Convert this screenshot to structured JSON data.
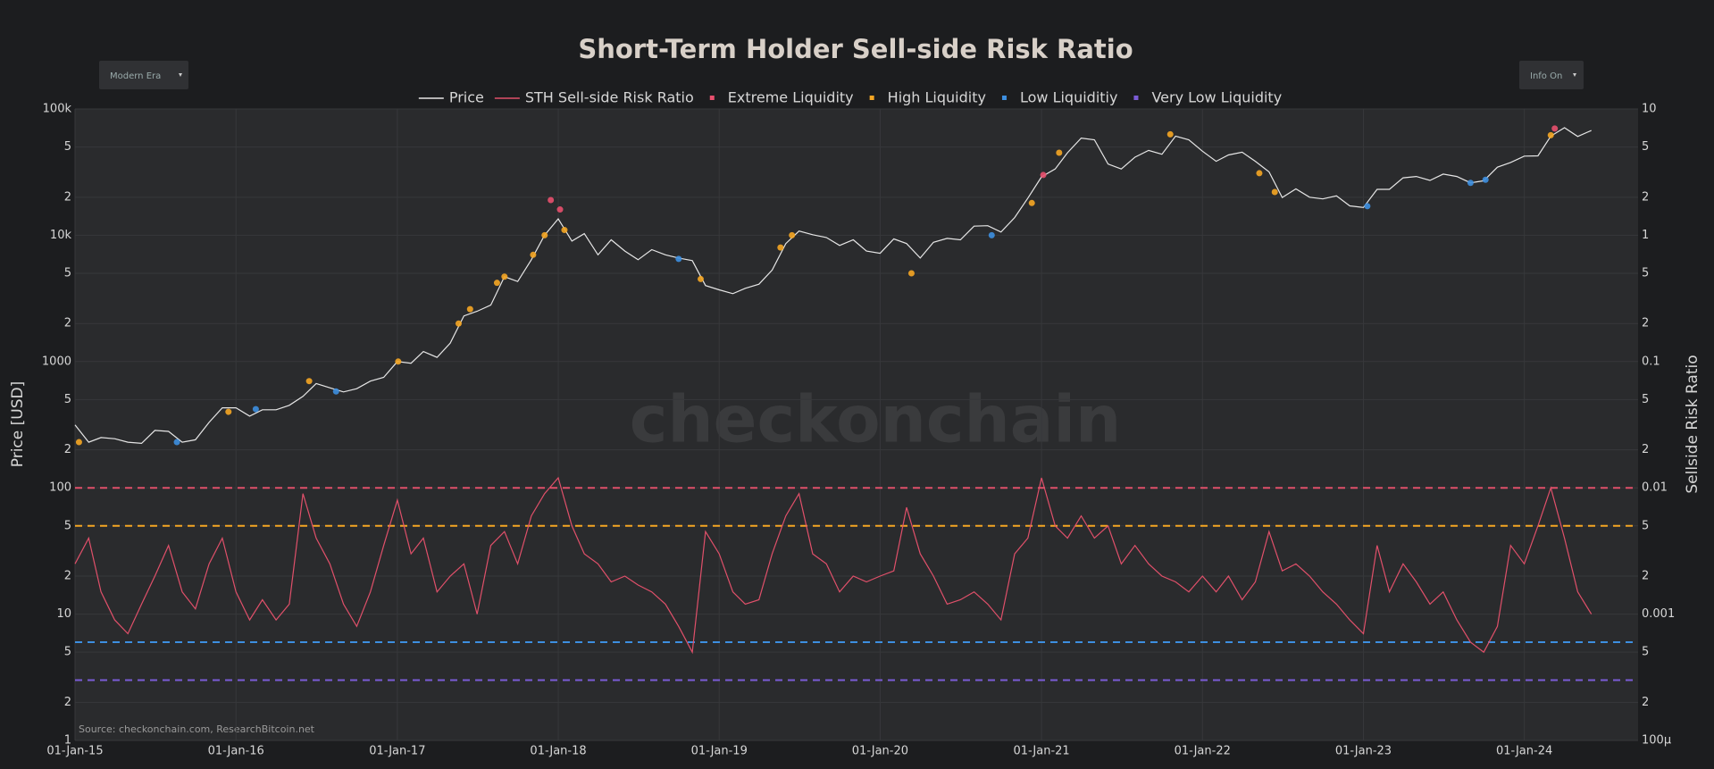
{
  "controls": {
    "era": "Modern Era",
    "info": "Info On"
  },
  "chart_data": {
    "type": "line",
    "title": "Short-Term Holder Sell-side Risk Ratio",
    "source": "Source: checkonchain.com, ResearchBitcoin.net",
    "watermark": "checkonchain",
    "y_label": "Price [USD]",
    "y2_label": "Sellside Risk Ratio",
    "log_y": true,
    "log_y2": true,
    "grid": true,
    "legend": "top",
    "xlim": [
      "2015-01-01",
      "2024-09-15"
    ],
    "xticks": [
      {
        "value": "2015-01-01",
        "label": "01-Jan-15"
      },
      {
        "value": "2016-01-01",
        "label": "01-Jan-16"
      },
      {
        "value": "2017-01-01",
        "label": "01-Jan-17"
      },
      {
        "value": "2018-01-01",
        "label": "01-Jan-18"
      },
      {
        "value": "2019-01-01",
        "label": "01-Jan-19"
      },
      {
        "value": "2020-01-01",
        "label": "01-Jan-20"
      },
      {
        "value": "2021-01-01",
        "label": "01-Jan-21"
      },
      {
        "value": "2022-01-01",
        "label": "01-Jan-22"
      },
      {
        "value": "2023-01-01",
        "label": "01-Jan-23"
      },
      {
        "value": "2024-01-01",
        "label": "01-Jan-24"
      }
    ],
    "ylim": [
      1,
      100000
    ],
    "yticks": [
      1,
      2,
      5,
      10,
      {
        "value": 20,
        "label": "2"
      },
      {
        "value": 50,
        "label": "5"
      },
      100,
      {
        "value": 200,
        "label": "2"
      },
      {
        "value": 500,
        "label": "5"
      },
      1000,
      {
        "value": 2000,
        "label": "2"
      },
      {
        "value": 5000,
        "label": "5"
      },
      {
        "value": 10000,
        "label": "10k"
      },
      {
        "value": 20000,
        "label": "2"
      },
      {
        "value": 50000,
        "label": "5"
      },
      {
        "value": 100000,
        "label": "100k"
      }
    ],
    "y2lim": [
      0.0001,
      10
    ],
    "y2ticks": [
      {
        "value": 0.0001,
        "label": "100μ"
      },
      {
        "value": 0.0002,
        "label": "2"
      },
      {
        "value": 0.0005,
        "label": "5"
      },
      0.001,
      {
        "value": 0.002,
        "label": "2"
      },
      {
        "value": 0.005,
        "label": "5"
      },
      0.01,
      {
        "value": 0.02,
        "label": "2"
      },
      {
        "value": 0.05,
        "label": "5"
      },
      0.1,
      {
        "value": 0.2,
        "label": "2"
      },
      {
        "value": 0.5,
        "label": "5"
      },
      1,
      2,
      5,
      10
    ],
    "x": [
      "2015-01-01",
      "2015-02-01",
      "2015-03-01",
      "2015-04-01",
      "2015-05-01",
      "2015-06-01",
      "2015-07-01",
      "2015-08-01",
      "2015-09-01",
      "2015-10-01",
      "2015-11-01",
      "2015-12-01",
      "2016-01-01",
      "2016-02-01",
      "2016-03-01",
      "2016-04-01",
      "2016-05-01",
      "2016-06-01",
      "2016-07-01",
      "2016-08-01",
      "2016-09-01",
      "2016-10-01",
      "2016-11-01",
      "2016-12-01",
      "2017-01-01",
      "2017-02-01",
      "2017-03-01",
      "2017-04-01",
      "2017-05-01",
      "2017-06-01",
      "2017-07-01",
      "2017-08-01",
      "2017-09-01",
      "2017-10-01",
      "2017-11-01",
      "2017-12-01",
      "2018-01-01",
      "2018-02-01",
      "2018-03-01",
      "2018-04-01",
      "2018-05-01",
      "2018-06-01",
      "2018-07-01",
      "2018-08-01",
      "2018-09-01",
      "2018-10-01",
      "2018-11-01",
      "2018-12-01",
      "2019-01-01",
      "2019-02-01",
      "2019-03-01",
      "2019-04-01",
      "2019-05-01",
      "2019-06-01",
      "2019-07-01",
      "2019-08-01",
      "2019-09-01",
      "2019-10-01",
      "2019-11-01",
      "2019-12-01",
      "2020-01-01",
      "2020-02-01",
      "2020-03-01",
      "2020-04-01",
      "2020-05-01",
      "2020-06-01",
      "2020-07-01",
      "2020-08-01",
      "2020-09-01",
      "2020-10-01",
      "2020-11-01",
      "2020-12-01",
      "2021-01-01",
      "2021-02-01",
      "2021-03-01",
      "2021-04-01",
      "2021-05-01",
      "2021-06-01",
      "2021-07-01",
      "2021-08-01",
      "2021-09-01",
      "2021-10-01",
      "2021-11-01",
      "2021-12-01",
      "2022-01-01",
      "2022-02-01",
      "2022-03-01",
      "2022-04-01",
      "2022-05-01",
      "2022-06-01",
      "2022-07-01",
      "2022-08-01",
      "2022-09-01",
      "2022-10-01",
      "2022-11-01",
      "2022-12-01",
      "2023-01-01",
      "2023-02-01",
      "2023-03-01",
      "2023-04-01",
      "2023-05-01",
      "2023-06-01",
      "2023-07-01",
      "2023-08-01",
      "2023-09-01",
      "2023-10-01",
      "2023-11-01",
      "2023-12-01",
      "2024-01-01",
      "2024-02-01",
      "2024-03-01",
      "2024-04-01",
      "2024-05-01",
      "2024-06-01"
    ],
    "series": [
      {
        "name": "Price",
        "color": "#e6e6e6",
        "axis": "y",
        "values": [
          315,
          230,
          250,
          245,
          230,
          225,
          285,
          280,
          230,
          240,
          330,
          430,
          430,
          370,
          415,
          415,
          450,
          530,
          670,
          620,
          575,
          610,
          700,
          750,
          1000,
          970,
          1200,
          1080,
          1400,
          2300,
          2500,
          2800,
          4700,
          4300,
          6400,
          10000,
          13500,
          9000,
          10300,
          7000,
          9200,
          7500,
          6400,
          7700,
          7000,
          6600,
          6300,
          4000,
          3700,
          3450,
          3800,
          4100,
          5300,
          8600,
          10800,
          10100,
          9600,
          8300,
          9200,
          7500,
          7200,
          9350,
          8600,
          6600,
          8800,
          9450,
          9200,
          11800,
          11900,
          10600,
          13800,
          19700,
          29000,
          33500,
          45000,
          58800,
          57000,
          36600,
          33500,
          41500,
          47000,
          43800,
          61000,
          57000,
          46300,
          38500,
          43200,
          45500,
          38500,
          31800,
          19900,
          23300,
          20000,
          19400,
          20500,
          17100,
          16600,
          23100,
          23100,
          28500,
          29200,
          27200,
          30500,
          29200,
          26000,
          27000,
          34600,
          37700,
          42300,
          42500,
          61000,
          71000,
          60600,
          67500
        ]
      },
      {
        "name": "STH Sell-side Risk Ratio",
        "color": "#e0506a",
        "axis": "y2",
        "values": [
          0.0025,
          0.004,
          0.0015,
          0.0009,
          0.0007,
          0.0012,
          0.002,
          0.0035,
          0.0015,
          0.0011,
          0.0025,
          0.004,
          0.0015,
          0.0009,
          0.0013,
          0.0009,
          0.0012,
          0.009,
          0.004,
          0.0025,
          0.0012,
          0.0008,
          0.0015,
          0.0035,
          0.008,
          0.003,
          0.004,
          0.0015,
          0.002,
          0.0025,
          0.001,
          0.0035,
          0.0045,
          0.0025,
          0.006,
          0.009,
          0.012,
          0.005,
          0.003,
          0.0025,
          0.0018,
          0.002,
          0.0017,
          0.0015,
          0.0012,
          0.0008,
          0.0005,
          0.0045,
          0.003,
          0.0015,
          0.0012,
          0.0013,
          0.003,
          0.006,
          0.009,
          0.003,
          0.0025,
          0.0015,
          0.002,
          0.0018,
          0.002,
          0.0022,
          0.007,
          0.003,
          0.002,
          0.0012,
          0.0013,
          0.0015,
          0.0012,
          0.0009,
          0.003,
          0.004,
          0.012,
          0.005,
          0.004,
          0.006,
          0.004,
          0.005,
          0.0025,
          0.0035,
          0.0025,
          0.002,
          0.0018,
          0.0015,
          0.002,
          0.0015,
          0.002,
          0.0013,
          0.0018,
          0.0045,
          0.0022,
          0.0025,
          0.002,
          0.0015,
          0.0012,
          0.0009,
          0.0007,
          0.0035,
          0.0015,
          0.0025,
          0.0018,
          0.0012,
          0.0015,
          0.0009,
          0.0006,
          0.0005,
          0.0008,
          0.0035,
          0.0025,
          0.005,
          0.01,
          0.004,
          0.0015,
          0.001
        ]
      }
    ],
    "markers": [
      {
        "name": "Extreme Liquidity",
        "color": "#e8506e",
        "x": [
          "2017-12-15",
          "2018-01-05",
          "2021-01-05",
          "2024-03-10"
        ],
        "values": [
          19000,
          16000,
          30000,
          70000
        ]
      },
      {
        "name": "High Liquidity",
        "color": "#f5a623",
        "x": [
          "2015-01-10",
          "2015-12-15",
          "2016-06-15",
          "2017-01-03",
          "2017-05-20",
          "2017-06-15",
          "2017-08-15",
          "2017-09-01",
          "2017-11-05",
          "2017-12-01",
          "2018-01-15",
          "2018-11-20",
          "2019-05-20",
          "2019-06-15",
          "2020-03-12",
          "2020-12-10",
          "2021-02-10",
          "2021-10-20",
          "2022-05-10",
          "2022-06-14",
          "2024-03-01"
        ],
        "values": [
          230,
          400,
          700,
          1000,
          2000,
          2600,
          4200,
          4700,
          7000,
          10000,
          11000,
          4500,
          8000,
          10000,
          5000,
          18000,
          45000,
          63000,
          31000,
          22000,
          62000
        ]
      },
      {
        "name": "Low Liquiditiy",
        "color": "#3d8fe0",
        "x": [
          "2015-08-20",
          "2016-02-15",
          "2016-08-15",
          "2018-10-01",
          "2020-09-10",
          "2023-01-10",
          "2023-09-01",
          "2023-10-05"
        ],
        "values": [
          230,
          420,
          580,
          6500,
          10000,
          17000,
          26000,
          27500
        ]
      },
      {
        "name": "Very Low Liquidity",
        "color": "#7b5cd6",
        "x": [],
        "values": []
      }
    ],
    "reference_lines": [
      {
        "value": 0.01,
        "color": "#e0506a",
        "axis": "y2"
      },
      {
        "value": 0.005,
        "color": "#f5a623",
        "axis": "y2"
      },
      {
        "value": 0.0006,
        "color": "#3d8fe0",
        "axis": "y2"
      },
      {
        "value": 0.0003,
        "color": "#7b5cd6",
        "axis": "y2"
      }
    ]
  }
}
